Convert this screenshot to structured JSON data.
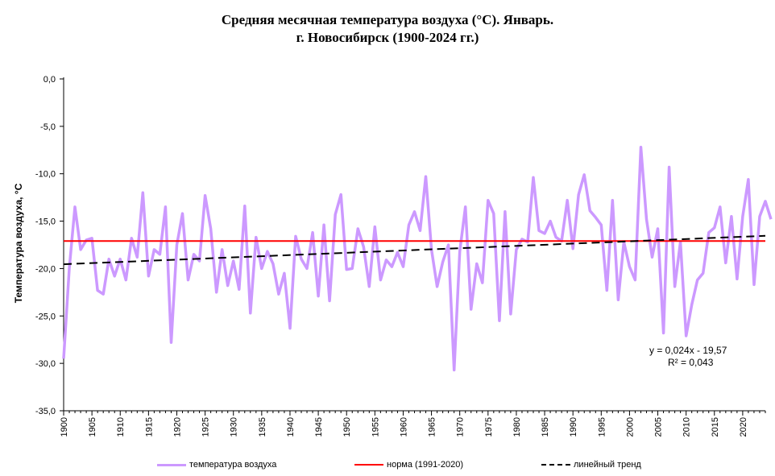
{
  "title_line1": "Средняя месячная температура воздуха (°C). Январь.",
  "title_line2": "г. Новосибирск (1900-2024 гг.)",
  "chart_data": {
    "type": "line",
    "ylabel": "Температура воздуха, °С",
    "ylim": [
      -35,
      0
    ],
    "yticks": [
      "0,0",
      "-5,0",
      "-10,0",
      "-15,0",
      "-20,0",
      "-25,0",
      "-30,0",
      "-35,0"
    ],
    "ytick_values": [
      0,
      -5,
      -10,
      -15,
      -20,
      -25,
      -30,
      -35
    ],
    "xlim": [
      1900,
      2024
    ],
    "xticks": [
      "1900",
      "1905",
      "1910",
      "1915",
      "1920",
      "1925",
      "1930",
      "1935",
      "1940",
      "1945",
      "1950",
      "1955",
      "1960",
      "1965",
      "1970",
      "1975",
      "1980",
      "1985",
      "1990",
      "1995",
      "2000",
      "2005",
      "2010",
      "2015",
      "2020"
    ],
    "grid": false,
    "legend_position": "bottom",
    "series": [
      {
        "name": "температура воздуха",
        "color": "#cc99ff",
        "x_start": 1900,
        "values": [
          -29.5,
          -20.0,
          -13.5,
          -18.0,
          -17.0,
          -16.8,
          -22.3,
          -22.7,
          -19.0,
          -20.8,
          -19.0,
          -21.2,
          -16.8,
          -18.8,
          -12.0,
          -20.8,
          -18.0,
          -18.5,
          -13.5,
          -27.8,
          -17.5,
          -14.2,
          -21.2,
          -18.5,
          -19.2,
          -12.3,
          -15.8,
          -22.5,
          -18.0,
          -21.8,
          -19.2,
          -22.2,
          -13.4,
          -24.7,
          -16.7,
          -20.0,
          -18.2,
          -19.5,
          -22.7,
          -20.5,
          -26.3,
          -16.6,
          -19.0,
          -20.0,
          -16.2,
          -22.9,
          -15.4,
          -23.4,
          -14.3,
          -12.2,
          -20.1,
          -20.0,
          -15.8,
          -17.7,
          -21.9,
          -15.6,
          -21.2,
          -19.1,
          -19.8,
          -18.3,
          -19.8,
          -15.4,
          -14.0,
          -16.0,
          -10.3,
          -18.0,
          -21.9,
          -19.3,
          -17.5,
          -30.7,
          -18.2,
          -13.5,
          -24.3,
          -19.5,
          -21.5,
          -12.8,
          -14.2,
          -25.5,
          -14.0,
          -24.8,
          -18.0,
          -16.9,
          -17.2,
          -10.4,
          -16.0,
          -16.3,
          -15.0,
          -16.7,
          -17.1,
          -12.8,
          -17.9,
          -12.2,
          -10.1,
          -13.9,
          -14.6,
          -15.4,
          -22.3,
          -12.8,
          -23.3,
          -17.2,
          -19.8,
          -21.2,
          -7.2,
          -14.8,
          -18.8,
          -15.8,
          -26.8,
          -9.3,
          -21.9,
          -17.2,
          -27.1,
          -23.8,
          -21.2,
          -20.5,
          -16.2,
          -15.7,
          -13.5,
          -19.4,
          -14.5,
          -21.1,
          -14.5,
          -10.6,
          -21.7,
          -14.5,
          -12.9,
          -14.8
        ]
      },
      {
        "name": "норма (1991-2020)",
        "color": "#ff0000",
        "value": -17.1
      },
      {
        "name": "линейный тренд",
        "color": "#000000",
        "slope": 0.024,
        "intercept": -19.57
      }
    ],
    "annotations": [
      "y = 0,024x  - 19,57",
      "R² = 0,043"
    ]
  }
}
